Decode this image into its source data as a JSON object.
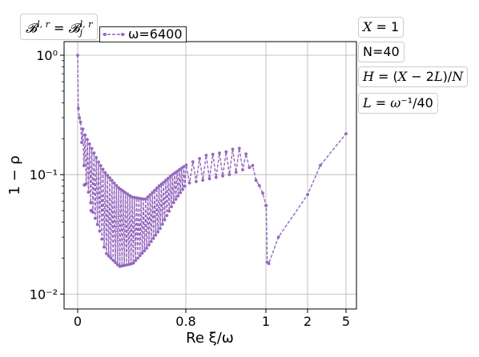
{
  "chart_data": {
    "type": "line",
    "ylabel": "1 − ρ",
    "xlabel": "Re ξ/ω",
    "yscale": "log",
    "ylim": [
      0.0075,
      1.3
    ],
    "y_ticks": [
      {
        "value": 1,
        "label": "10⁰"
      },
      {
        "value": 0.1,
        "label": "10⁻¹"
      },
      {
        "value": 0.01,
        "label": "10⁻²"
      }
    ],
    "x_ticks": [
      {
        "value": 0,
        "label": "0"
      },
      {
        "value": 0.8,
        "label": "0.8"
      },
      {
        "value": 1,
        "label": "1"
      },
      {
        "value": 2,
        "label": "2"
      },
      {
        "value": 5,
        "label": "5"
      }
    ],
    "grid": true,
    "legend_position": "top-left",
    "series": [
      {
        "name": "ω=6400",
        "color": "#9467bd",
        "style": "dashed line with dot markers",
        "envelope_upper": [
          {
            "x": 0.0,
            "y": 1.0
          },
          {
            "x": 0.005,
            "y": 0.36
          },
          {
            "x": 0.01,
            "y": 0.3
          },
          {
            "x": 0.05,
            "y": 0.22
          },
          {
            "x": 0.1,
            "y": 0.17
          },
          {
            "x": 0.15,
            "y": 0.13
          },
          {
            "x": 0.2,
            "y": 0.105
          },
          {
            "x": 0.3,
            "y": 0.078
          },
          {
            "x": 0.4,
            "y": 0.065
          },
          {
            "x": 0.5,
            "y": 0.062
          },
          {
            "x": 0.6,
            "y": 0.08
          },
          {
            "x": 0.7,
            "y": 0.1
          },
          {
            "x": 0.8,
            "y": 0.12
          },
          {
            "x": 0.85,
            "y": 0.145
          },
          {
            "x": 0.9,
            "y": 0.155
          },
          {
            "x": 0.93,
            "y": 0.17
          },
          {
            "x": 0.96,
            "y": 0.14
          },
          {
            "x": 1.0,
            "y": 0.055
          },
          {
            "x": 1.03,
            "y": 0.0185
          },
          {
            "x": 1.07,
            "y": 0.018
          },
          {
            "x": 1.3,
            "y": 0.03
          },
          {
            "x": 2.0,
            "y": 0.068
          },
          {
            "x": 3.0,
            "y": 0.12
          },
          {
            "x": 5.0,
            "y": 0.22
          }
        ],
        "envelope_lower": [
          {
            "x": 0.005,
            "y": 0.3
          },
          {
            "x": 0.01,
            "y": 0.25
          },
          {
            "x": 0.03,
            "y": 0.15
          },
          {
            "x": 0.05,
            "y": 0.085
          },
          {
            "x": 0.06,
            "y": 0.082
          },
          {
            "x": 0.1,
            "y": 0.05
          },
          {
            "x": 0.15,
            "y": 0.035
          },
          {
            "x": 0.2,
            "y": 0.022
          },
          {
            "x": 0.3,
            "y": 0.017
          },
          {
            "x": 0.4,
            "y": 0.018
          },
          {
            "x": 0.5,
            "y": 0.024
          },
          {
            "x": 0.6,
            "y": 0.035
          },
          {
            "x": 0.7,
            "y": 0.058
          },
          {
            "x": 0.8,
            "y": 0.085
          },
          {
            "x": 0.9,
            "y": 0.1
          },
          {
            "x": 0.95,
            "y": 0.115
          },
          {
            "x": 1.0,
            "y": 0.055
          }
        ],
        "sharp_dips": [
          {
            "x": 0.05,
            "y": 0.082
          },
          {
            "x": 0.1,
            "y": 0.05
          }
        ]
      }
    ]
  },
  "annotations": {
    "top_left_box": {
      "lhs": "𝓑",
      "lhs_sup": "l, r",
      "eq": " = ",
      "rhs": "𝓑",
      "rhs_sub": "j",
      "rhs_sup": "l, r"
    },
    "right_boxes": [
      {
        "id": "x-value-box",
        "parts": [
          {
            "t": "X",
            "m": 1
          },
          {
            "t": " = 1",
            "m": 0
          }
        ]
      },
      {
        "id": "n-value-box",
        "parts": [
          {
            "t": "N=40",
            "m": 0
          }
        ]
      },
      {
        "id": "h-formula-box",
        "parts": [
          {
            "t": "H",
            "m": 1
          },
          {
            "t": " = (",
            "m": 0
          },
          {
            "t": "X",
            "m": 1
          },
          {
            "t": " − 2",
            "m": 0
          },
          {
            "t": "L",
            "m": 1
          },
          {
            "t": ")/",
            "m": 0
          },
          {
            "t": "N",
            "m": 1
          }
        ]
      },
      {
        "id": "l-formula-box",
        "parts": [
          {
            "t": "L",
            "m": 1
          },
          {
            "t": " = ",
            "m": 0
          },
          {
            "t": "ω",
            "m": 1
          },
          {
            "t": "⁻¹/40",
            "m": 0
          }
        ]
      }
    ]
  }
}
